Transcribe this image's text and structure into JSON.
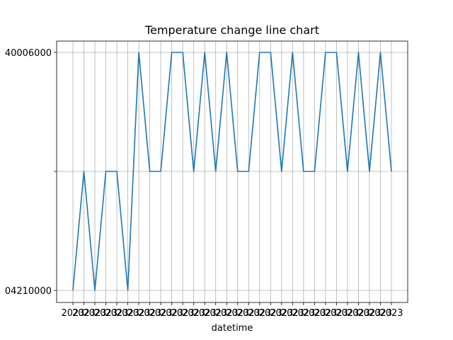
{
  "chart_data": {
    "type": "line",
    "title": "Temperature change line chart",
    "xlabel": "datetime",
    "ylabel": "",
    "grid": true,
    "x_tick_label_texts": [
      "2023",
      "2023",
      "2023",
      "2023",
      "2023",
      "2023",
      "2023",
      "2023",
      "2023",
      "2023",
      "2023",
      "2023",
      "2023",
      "2023",
      "2023",
      "2023",
      "2023",
      "2023",
      "2023",
      "2023",
      "2023",
      "2023",
      "2023",
      "2023",
      "2023",
      "2023",
      "2023",
      "2023",
      "2023",
      "2023"
    ],
    "y_categories": [
      "04210000",
      "",
      "40006000"
    ],
    "series": [
      {
        "name": "",
        "color": "#1f77b4",
        "values": [
          "04210000",
          "",
          "04210000",
          "",
          "",
          "04210000",
          "40006000",
          "",
          "",
          "40006000",
          "40006000",
          "",
          "40006000",
          "",
          "40006000",
          "",
          "",
          "40006000",
          "40006000",
          "",
          "40006000",
          "",
          "",
          "40006000",
          "40006000",
          "",
          "40006000",
          "",
          "40006000",
          ""
        ]
      }
    ]
  }
}
